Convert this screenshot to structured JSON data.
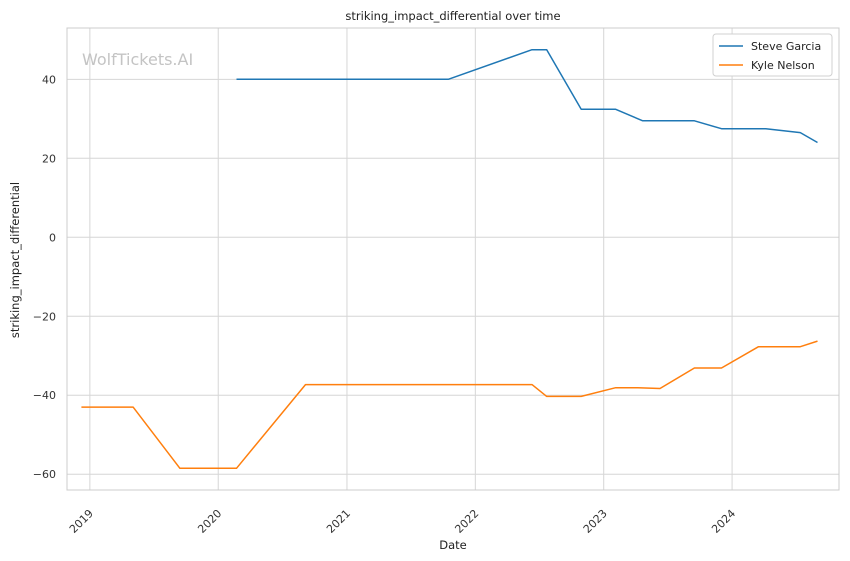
{
  "watermark": "WolfTickets.AI",
  "chart_data": {
    "type": "line",
    "title": "striking_impact_differential over time",
    "xlabel": "Date",
    "ylabel": "striking_impact_differential",
    "x_ticks": [
      "2019",
      "2020",
      "2021",
      "2022",
      "2023",
      "2024"
    ],
    "y_ticks": [
      40,
      20,
      0,
      -20,
      -40,
      -60
    ],
    "ylim": [
      -64,
      53
    ],
    "xlim": [
      "2018-10-28",
      "2024-10-31"
    ],
    "grid": true,
    "legend_position": "top-right",
    "series": [
      {
        "name": "Steve Garcia",
        "color": "#1f77b4",
        "points": [
          [
            "2020-02-22",
            40.0
          ],
          [
            "2021-10-16",
            40.0
          ],
          [
            "2022-06-11",
            47.5
          ],
          [
            "2022-07-23",
            47.5
          ],
          [
            "2022-10-29",
            32.4
          ],
          [
            "2023-02-04",
            32.4
          ],
          [
            "2023-04-22",
            29.5
          ],
          [
            "2023-09-16",
            29.5
          ],
          [
            "2023-12-02",
            27.5
          ],
          [
            "2024-04-06",
            27.5
          ],
          [
            "2024-07-13",
            26.5
          ],
          [
            "2024-08-31",
            24.0
          ]
        ]
      },
      {
        "name": "Kyle Nelson",
        "color": "#ff7f0e",
        "points": [
          [
            "2018-12-08",
            -43.0
          ],
          [
            "2019-05-04",
            -43.0
          ],
          [
            "2019-09-14",
            -58.5
          ],
          [
            "2020-02-22",
            -58.5
          ],
          [
            "2020-09-05",
            -37.3
          ],
          [
            "2022-06-11",
            -37.3
          ],
          [
            "2022-07-23",
            -40.3
          ],
          [
            "2022-10-29",
            -40.3
          ],
          [
            "2023-02-04",
            -38.1
          ],
          [
            "2023-04-08",
            -38.1
          ],
          [
            "2023-06-10",
            -38.3
          ],
          [
            "2023-09-16",
            -33.1
          ],
          [
            "2023-12-02",
            -33.1
          ],
          [
            "2024-03-16",
            -27.7
          ],
          [
            "2024-07-13",
            -27.7
          ],
          [
            "2024-08-31",
            -26.3
          ]
        ]
      }
    ]
  }
}
